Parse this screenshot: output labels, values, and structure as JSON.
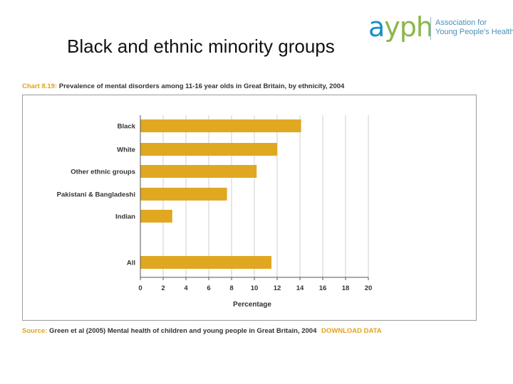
{
  "slide": {
    "title": "Black and ethnic minority groups"
  },
  "logo": {
    "mark_a": "a",
    "mark_rest": "yph",
    "name_line1": "Association for",
    "name_line2": "Young People's Health"
  },
  "caption": {
    "label": "Chart 8.19:",
    "text": "Prevalence of mental disorders among 11-16 year olds in Great Britain, by ethnicity, 2004"
  },
  "source": {
    "label": "Source:",
    "text": "Green et al (2005) Mental health of children and young people in Great Britain, 2004",
    "download_label": "DOWNLOAD DATA"
  },
  "colors": {
    "bar": "#e0a820",
    "grid": "#cfcfcf",
    "axis": "#555555",
    "accent": "#e0a21f"
  },
  "chart_data": {
    "type": "bar",
    "orientation": "horizontal",
    "title": "Prevalence of mental disorders among 11-16 year olds in Great Britain, by ethnicity, 2004",
    "categories": [
      "Black",
      "White",
      "Other ethnic groups",
      "Pakistani & Bangladeshi",
      "Indian",
      "All"
    ],
    "values": [
      14.1,
      12.0,
      10.2,
      7.6,
      2.8,
      11.5
    ],
    "xlabel": "Percentage",
    "ylabel": "",
    "xlim": [
      0,
      20
    ],
    "xticks": [
      0,
      2,
      4,
      6,
      8,
      10,
      12,
      14,
      16,
      18,
      20
    ],
    "grid": true
  }
}
